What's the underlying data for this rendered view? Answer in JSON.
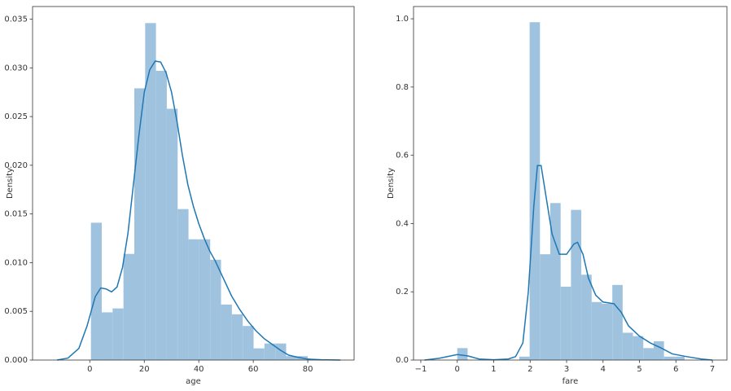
{
  "chart_data": [
    {
      "type": "histogram",
      "xlabel": "age",
      "ylabel": "Density",
      "color": "#9fc3de",
      "bins": [
        0.42,
        4.4,
        8.38,
        12.36,
        16.34,
        20.32,
        24.29,
        28.27,
        32.25,
        36.23,
        40.21,
        44.19,
        48.17,
        52.15,
        56.13,
        60.11,
        64.09,
        68.07,
        72.05,
        76.03,
        80.0
      ],
      "values": [
        0.0141,
        0.0049,
        0.0053,
        0.0109,
        0.0279,
        0.0346,
        0.0297,
        0.0258,
        0.0155,
        0.0124,
        0.0124,
        0.0103,
        0.0057,
        0.0047,
        0.0035,
        0.0012,
        0.0017,
        0.0017,
        0.0004,
        0.0004
      ],
      "kde": {
        "color": "#1f77b4",
        "x": [
          -12,
          -8,
          -4,
          -1,
          2,
          4,
          6,
          8,
          10,
          12,
          14,
          16,
          18,
          20,
          22,
          24,
          26,
          28,
          30,
          32,
          34,
          36,
          38,
          40,
          42,
          44,
          46,
          48,
          50,
          52,
          55,
          58,
          61,
          64,
          67,
          70,
          73,
          76,
          80,
          85,
          92
        ],
        "values": [
          0,
          0.0002,
          0.0012,
          0.0035,
          0.0065,
          0.0074,
          0.0073,
          0.007,
          0.0075,
          0.0095,
          0.013,
          0.018,
          0.023,
          0.0275,
          0.0298,
          0.0307,
          0.0306,
          0.0295,
          0.0275,
          0.0245,
          0.021,
          0.018,
          0.0158,
          0.014,
          0.0125,
          0.0112,
          0.0102,
          0.009,
          0.0078,
          0.0066,
          0.0052,
          0.004,
          0.003,
          0.0022,
          0.0016,
          0.001,
          0.0005,
          0.0003,
          0.0001,
          3e-05,
          0
        ]
      },
      "xlim": [
        -21,
        97
      ],
      "ylim": [
        0,
        0.0363
      ],
      "xticks": [
        0,
        20,
        40,
        60,
        80
      ],
      "yticks": [
        {
          "value": 0,
          "label": "0.000"
        },
        {
          "value": 0.005,
          "label": "0.005"
        },
        {
          "value": 0.01,
          "label": "0.010"
        },
        {
          "value": 0.015,
          "label": "0.015"
        },
        {
          "value": 0.02,
          "label": "0.020"
        },
        {
          "value": 0.025,
          "label": "0.025"
        },
        {
          "value": 0.03,
          "label": "0.030"
        },
        {
          "value": 0.035,
          "label": "0.035"
        }
      ]
    },
    {
      "type": "histogram",
      "xlabel": "fare",
      "ylabel": "Density",
      "color": "#9fc3de",
      "bins": [
        0,
        0.2836,
        0.5673,
        0.8509,
        1.1345,
        1.4182,
        1.7018,
        1.9855,
        2.2691,
        2.5527,
        2.8364,
        3.12,
        3.4036,
        3.6873,
        3.9709,
        4.2545,
        4.5382,
        4.8218,
        5.1055,
        5.3891,
        5.6727,
        5.9564,
        6.24
      ],
      "values": [
        0.035,
        0,
        0,
        0,
        0,
        0,
        0.01,
        0.99,
        0.31,
        0.46,
        0.215,
        0.44,
        0.25,
        0.17,
        0.165,
        0.22,
        0.08,
        0.07,
        0.035,
        0.055,
        0.01,
        0.01
      ],
      "kde": {
        "color": "#1f77b4",
        "x": [
          -0.9,
          -0.5,
          0,
          0.3,
          0.6,
          1,
          1.4,
          1.6,
          1.8,
          1.95,
          2.1,
          2.2,
          2.3,
          2.45,
          2.6,
          2.8,
          3.0,
          3.2,
          3.3,
          3.45,
          3.6,
          3.8,
          4.0,
          4.3,
          4.5,
          4.7,
          5.0,
          5.3,
          5.6,
          5.9,
          6.3,
          6.7,
          7.0
        ],
        "values": [
          0,
          0.005,
          0.016,
          0.012,
          0.003,
          0.001,
          0.003,
          0.01,
          0.05,
          0.2,
          0.45,
          0.57,
          0.57,
          0.47,
          0.37,
          0.31,
          0.31,
          0.34,
          0.345,
          0.31,
          0.24,
          0.19,
          0.17,
          0.165,
          0.14,
          0.1,
          0.07,
          0.05,
          0.035,
          0.018,
          0.01,
          0.003,
          0
        ]
      },
      "xlim": [
        -1.2,
        7.4
      ],
      "ylim": [
        0,
        1.036
      ],
      "xticks": [
        {
          "value": -1,
          "label": "−1"
        },
        0,
        1,
        2,
        3,
        4,
        5,
        6,
        7
      ],
      "yticks": [
        {
          "value": 0,
          "label": "0.0"
        },
        {
          "value": 0.2,
          "label": "0.2"
        },
        {
          "value": 0.4,
          "label": "0.4"
        },
        {
          "value": 0.6,
          "label": "0.6"
        },
        {
          "value": 0.8,
          "label": "0.8"
        },
        {
          "value": 1,
          "label": "1.0"
        }
      ]
    }
  ]
}
